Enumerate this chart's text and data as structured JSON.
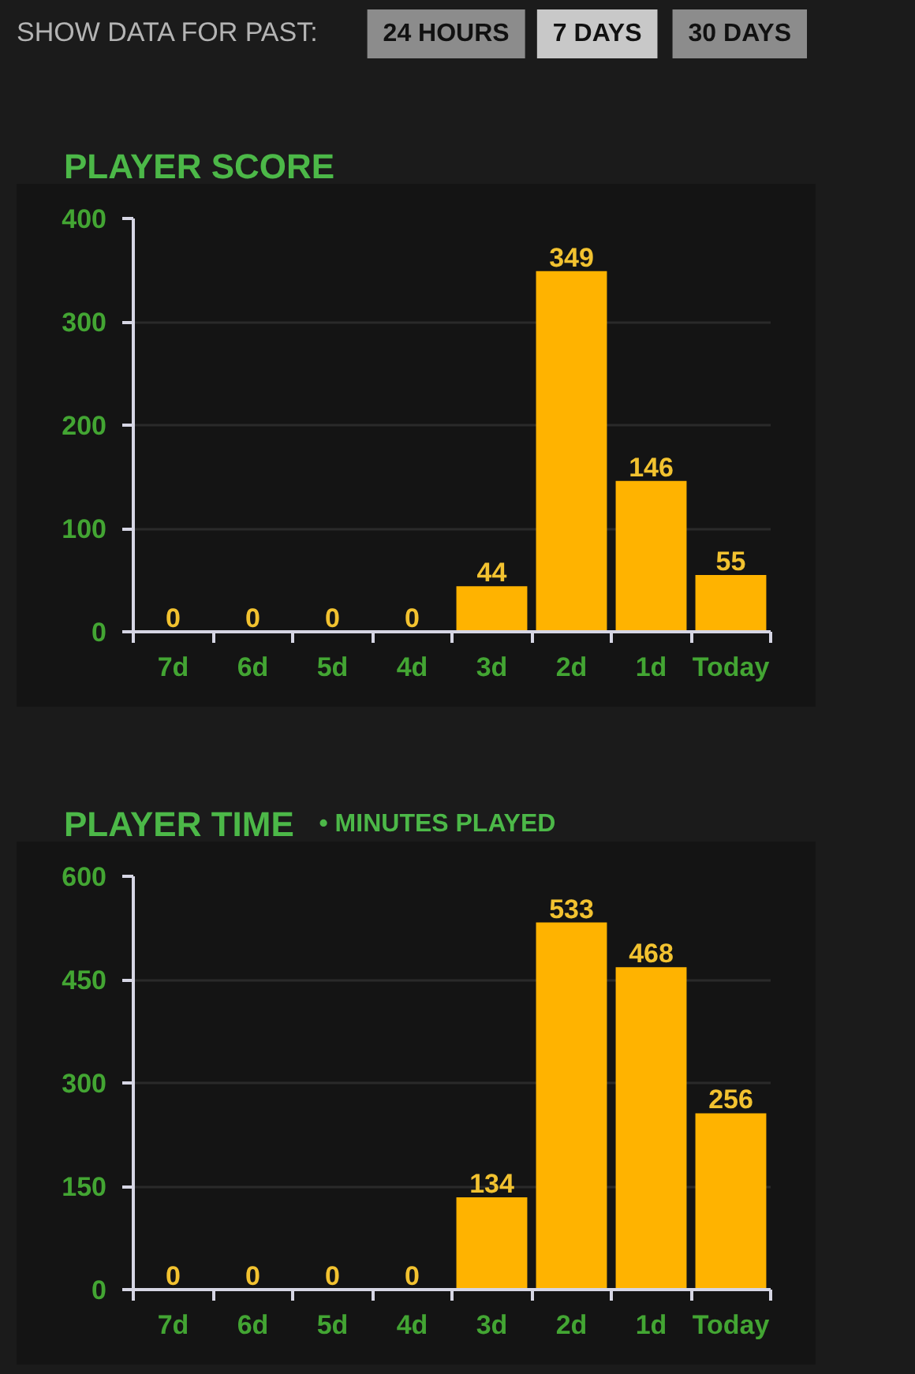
{
  "chart_data": [
    {
      "type": "bar",
      "title": "PLAYER SCORE",
      "annotations": [
        "SHOW DATA FOR PAST:",
        "24 HOURS",
        "7 DAYS",
        "30 DAYS"
      ],
      "categories": [
        "7d",
        "6d",
        "5d",
        "4d",
        "3d",
        "2d",
        "1d",
        "Today"
      ],
      "values": [
        0,
        0,
        0,
        0,
        44,
        349,
        146,
        55
      ],
      "color": "#ffb300",
      "ylim": [
        0,
        400
      ],
      "yticks": [
        0,
        100,
        200,
        300,
        400
      ],
      "grid": "y",
      "data_labels": true
    },
    {
      "type": "bar",
      "title": "PLAYER TIME",
      "subtitle": "• MINUTES PLAYED",
      "categories": [
        "7d",
        "6d",
        "5d",
        "4d",
        "3d",
        "2d",
        "1d",
        "Today"
      ],
      "values": [
        0,
        0,
        0,
        0,
        134,
        533,
        468,
        256
      ],
      "color": "#ffb300",
      "ylim": [
        0,
        600
      ],
      "yticks": [
        0,
        150,
        300,
        450,
        600
      ],
      "grid": "y",
      "data_labels": true
    }
  ]
}
